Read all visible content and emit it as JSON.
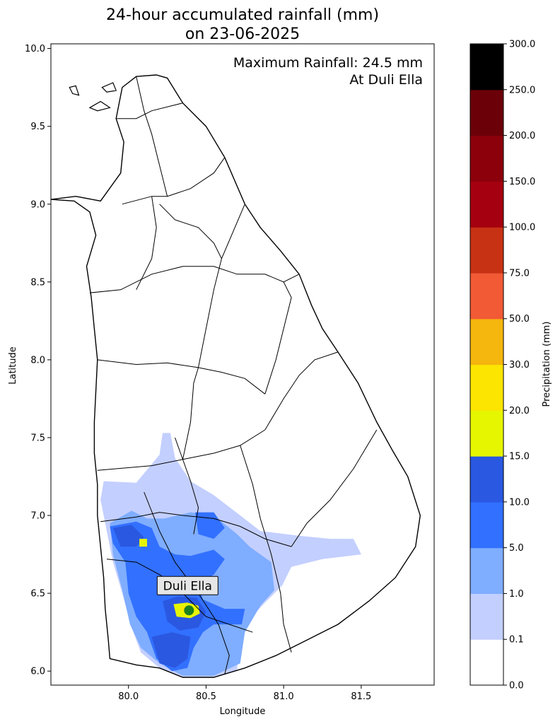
{
  "title": {
    "line1": "24-hour accumulated rainfall (mm)",
    "line2": "on 23-06-2025"
  },
  "annotation": {
    "line1": "Maximum Rainfall: 24.5 mm",
    "line2": "At Duli Ella"
  },
  "station": {
    "name": "Duli Ella",
    "lon": 80.39,
    "lat": 6.39,
    "marker_color": "#1e7f1e"
  },
  "map_axes": {
    "xlabel": "Longitude",
    "ylabel": "Latitude",
    "x_range": [
      79.5,
      81.97
    ],
    "y_range": [
      5.91,
      10.03
    ],
    "x_ticks": [
      "80.0",
      "80.5",
      "81.0",
      "81.5"
    ],
    "y_ticks": [
      "6.0",
      "6.5",
      "7.0",
      "7.5",
      "8.0",
      "8.5",
      "9.0",
      "9.5",
      "10.0"
    ]
  },
  "colorbar": {
    "label": "Precipitation (mm)",
    "tick_labels": [
      "0.0",
      "0.1",
      "1.0",
      "5.0",
      "10.0",
      "15.0",
      "20.0",
      "30.0",
      "50.0",
      "75.0",
      "100.0",
      "150.0",
      "200.0",
      "250.0",
      "300.0"
    ],
    "colors": [
      "#ffffff",
      "#c3cfff",
      "#7fadff",
      "#3270ff",
      "#2a58e0",
      "#e6f500",
      "#fce500",
      "#f5b60d",
      "#f15a35",
      "#c83214",
      "#a5000f",
      "#8c000b",
      "#6b0008",
      "#000000"
    ]
  },
  "rainfall_regions": [
    {
      "level": "0.1-1",
      "color": "#c3cfff",
      "points": [
        [
          79.84,
          7.22
        ],
        [
          80.05,
          7.21
        ],
        [
          80.2,
          7.39
        ],
        [
          80.22,
          7.53
        ],
        [
          80.27,
          7.53
        ],
        [
          80.3,
          7.37
        ],
        [
          80.4,
          7.22
        ],
        [
          80.55,
          7.13
        ],
        [
          80.72,
          7.0
        ],
        [
          80.85,
          6.9
        ],
        [
          81.1,
          6.87
        ],
        [
          81.3,
          6.85
        ],
        [
          81.45,
          6.85
        ],
        [
          81.5,
          6.75
        ],
        [
          81.25,
          6.72
        ],
        [
          81.05,
          6.67
        ],
        [
          80.99,
          6.55
        ],
        [
          80.88,
          6.44
        ],
        [
          80.78,
          6.33
        ],
        [
          80.71,
          6.19
        ],
        [
          80.7,
          6.0
        ],
        [
          80.55,
          5.96
        ],
        [
          80.35,
          5.96
        ],
        [
          80.2,
          6.02
        ],
        [
          80.08,
          6.12
        ],
        [
          80.02,
          6.28
        ],
        [
          79.96,
          6.5
        ],
        [
          79.9,
          6.7
        ],
        [
          79.85,
          6.95
        ],
        [
          79.82,
          7.1
        ]
      ]
    },
    {
      "level": "1-5",
      "color": "#7fadff",
      "points": [
        [
          79.88,
          6.95
        ],
        [
          80.02,
          7.03
        ],
        [
          80.12,
          6.98
        ],
        [
          80.23,
          6.98
        ],
        [
          80.4,
          7.02
        ],
        [
          80.55,
          7.0
        ],
        [
          80.7,
          6.88
        ],
        [
          80.78,
          6.8
        ],
        [
          80.92,
          6.7
        ],
        [
          80.94,
          6.52
        ],
        [
          80.85,
          6.42
        ],
        [
          80.75,
          6.25
        ],
        [
          80.72,
          6.05
        ],
        [
          80.55,
          5.97
        ],
        [
          80.35,
          5.97
        ],
        [
          80.2,
          6.05
        ],
        [
          80.08,
          6.15
        ],
        [
          80.01,
          6.3
        ],
        [
          79.96,
          6.52
        ],
        [
          79.9,
          6.75
        ]
      ]
    },
    {
      "level": "5-10",
      "color": "#3270ff",
      "points": [
        [
          79.88,
          6.93
        ],
        [
          80.05,
          6.96
        ],
        [
          80.15,
          6.92
        ],
        [
          80.2,
          6.8
        ],
        [
          80.3,
          6.75
        ],
        [
          80.4,
          6.74
        ],
        [
          80.55,
          6.78
        ],
        [
          80.62,
          6.72
        ],
        [
          80.55,
          6.62
        ],
        [
          80.45,
          6.56
        ],
        [
          80.48,
          6.46
        ],
        [
          80.62,
          6.4
        ],
        [
          80.75,
          6.4
        ],
        [
          80.73,
          6.3
        ],
        [
          80.55,
          6.3
        ],
        [
          80.48,
          6.25
        ],
        [
          80.42,
          6.15
        ],
        [
          80.38,
          6.02
        ],
        [
          80.28,
          6.0
        ],
        [
          80.18,
          6.08
        ],
        [
          80.12,
          6.25
        ],
        [
          80.05,
          6.35
        ],
        [
          80.0,
          6.5
        ],
        [
          79.98,
          6.7
        ],
        [
          79.9,
          6.82
        ]
      ]
    },
    {
      "level": "5-10b",
      "color": "#3270ff",
      "points": [
        [
          80.43,
          7.02
        ],
        [
          80.55,
          7.02
        ],
        [
          80.62,
          6.92
        ],
        [
          80.55,
          6.85
        ],
        [
          80.45,
          6.88
        ]
      ]
    },
    {
      "level": "10-15",
      "color": "#2a58e0",
      "points": [
        [
          80.22,
          6.45
        ],
        [
          80.32,
          6.48
        ],
        [
          80.44,
          6.47
        ],
        [
          80.5,
          6.38
        ],
        [
          80.45,
          6.28
        ],
        [
          80.33,
          6.26
        ],
        [
          80.25,
          6.32
        ]
      ]
    },
    {
      "level": "10-15b",
      "color": "#2a58e0",
      "points": [
        [
          80.15,
          6.22
        ],
        [
          80.28,
          6.25
        ],
        [
          80.4,
          6.22
        ],
        [
          80.38,
          6.08
        ],
        [
          80.3,
          6.02
        ],
        [
          80.2,
          6.05
        ]
      ]
    },
    {
      "level": "10-15c",
      "color": "#2a58e0",
      "points": [
        [
          79.9,
          6.92
        ],
        [
          80.02,
          6.94
        ],
        [
          80.1,
          6.86
        ],
        [
          80.05,
          6.8
        ],
        [
          79.95,
          6.8
        ]
      ]
    },
    {
      "level": "15-20",
      "color": "#e6f500",
      "points": [
        [
          80.29,
          6.43
        ],
        [
          80.38,
          6.44
        ],
        [
          80.45,
          6.42
        ],
        [
          80.46,
          6.37
        ],
        [
          80.4,
          6.34
        ],
        [
          80.31,
          6.35
        ]
      ]
    },
    {
      "level": "15-20b",
      "color": "#e6f500",
      "points": [
        [
          80.07,
          6.85
        ],
        [
          80.12,
          6.85
        ],
        [
          80.12,
          6.8
        ],
        [
          80.07,
          6.8
        ]
      ]
    },
    {
      "level": "20-30",
      "color": "#fce500",
      "points": [
        [
          80.33,
          6.41
        ],
        [
          80.38,
          6.42
        ],
        [
          80.41,
          6.39
        ],
        [
          80.36,
          6.37
        ]
      ]
    }
  ],
  "coastline": [
    [
      79.88,
      6.08
    ],
    [
      79.87,
      6.2
    ],
    [
      79.85,
      6.4
    ],
    [
      79.84,
      6.6
    ],
    [
      79.82,
      6.8
    ],
    [
      79.8,
      7.0
    ],
    [
      79.8,
      7.2
    ],
    [
      79.78,
      7.4
    ],
    [
      79.78,
      7.6
    ],
    [
      79.79,
      7.8
    ],
    [
      79.8,
      8.0
    ],
    [
      79.78,
      8.2
    ],
    [
      79.76,
      8.4
    ],
    [
      79.73,
      8.6
    ],
    [
      79.79,
      8.8
    ],
    [
      79.75,
      8.95
    ],
    [
      79.65,
      9.02
    ],
    [
      79.5,
      9.03
    ],
    [
      79.66,
      9.05
    ],
    [
      79.82,
      9.02
    ],
    [
      79.95,
      9.2
    ],
    [
      79.97,
      9.4
    ],
    [
      79.92,
      9.55
    ],
    [
      79.96,
      9.75
    ],
    [
      80.05,
      9.82
    ],
    [
      80.18,
      9.83
    ],
    [
      80.25,
      9.81
    ],
    [
      80.35,
      9.65
    ],
    [
      80.5,
      9.5
    ],
    [
      80.62,
      9.3
    ],
    [
      80.75,
      9.0
    ],
    [
      80.85,
      8.85
    ],
    [
      80.98,
      8.7
    ],
    [
      81.1,
      8.55
    ],
    [
      81.18,
      8.35
    ],
    [
      81.25,
      8.2
    ],
    [
      81.35,
      8.05
    ],
    [
      81.48,
      7.85
    ],
    [
      81.6,
      7.6
    ],
    [
      81.7,
      7.42
    ],
    [
      81.8,
      7.25
    ],
    [
      81.88,
      7.0
    ],
    [
      81.85,
      6.8
    ],
    [
      81.72,
      6.6
    ],
    [
      81.55,
      6.45
    ],
    [
      81.35,
      6.3
    ],
    [
      81.15,
      6.2
    ],
    [
      80.95,
      6.1
    ],
    [
      80.75,
      6.02
    ],
    [
      80.55,
      5.96
    ],
    [
      80.35,
      5.96
    ],
    [
      80.2,
      6.02
    ],
    [
      80.05,
      6.04
    ]
  ],
  "districts": [
    [
      [
        79.8,
        7.29
      ],
      [
        80.15,
        7.32
      ],
      [
        80.35,
        7.36
      ]
    ],
    [
      [
        80.35,
        7.36
      ],
      [
        80.55,
        7.4
      ],
      [
        80.72,
        7.45
      ],
      [
        80.88,
        7.55
      ]
    ],
    [
      [
        80.3,
        7.5
      ],
      [
        80.4,
        7.22
      ],
      [
        80.45,
        7.05
      ],
      [
        80.42,
        6.88
      ]
    ],
    [
      [
        79.82,
        6.96
      ],
      [
        80.05,
        6.99
      ],
      [
        80.2,
        7.02
      ],
      [
        80.35,
        7.0
      ],
      [
        80.55,
        6.98
      ]
    ],
    [
      [
        79.86,
        6.72
      ],
      [
        80.05,
        6.7
      ],
      [
        80.2,
        6.62
      ],
      [
        80.3,
        6.55
      ]
    ],
    [
      [
        80.3,
        6.55
      ],
      [
        80.4,
        6.45
      ],
      [
        80.5,
        6.35
      ],
      [
        80.65,
        6.3
      ],
      [
        80.8,
        6.25
      ]
    ],
    [
      [
        80.1,
        7.15
      ],
      [
        80.2,
        6.9
      ],
      [
        80.3,
        6.7
      ],
      [
        80.45,
        6.5
      ],
      [
        80.58,
        6.3
      ],
      [
        80.65,
        6.1
      ],
      [
        80.62,
        5.98
      ]
    ],
    [
      [
        80.55,
        6.98
      ],
      [
        80.72,
        6.93
      ],
      [
        80.88,
        6.85
      ],
      [
        81.05,
        6.8
      ]
    ],
    [
      [
        80.72,
        7.45
      ],
      [
        80.8,
        7.2
      ],
      [
        80.85,
        6.98
      ],
      [
        80.92,
        6.75
      ],
      [
        80.98,
        6.5
      ],
      [
        81.0,
        6.3
      ],
      [
        81.05,
        6.12
      ]
    ],
    [
      [
        81.05,
        6.8
      ],
      [
        81.15,
        6.95
      ],
      [
        81.3,
        7.1
      ],
      [
        81.45,
        7.3
      ],
      [
        81.6,
        7.55
      ]
    ],
    [
      [
        80.88,
        7.55
      ],
      [
        81.0,
        7.75
      ],
      [
        81.1,
        7.9
      ],
      [
        81.2,
        8.0
      ],
      [
        81.35,
        8.05
      ]
    ],
    [
      [
        79.8,
        8.0
      ],
      [
        80.05,
        7.97
      ],
      [
        80.25,
        7.98
      ],
      [
        80.45,
        7.95
      ],
      [
        80.6,
        7.92
      ],
      [
        80.75,
        7.88
      ],
      [
        80.88,
        7.78
      ]
    ],
    [
      [
        80.35,
        7.36
      ],
      [
        80.4,
        7.6
      ],
      [
        80.42,
        7.85
      ],
      [
        80.45,
        7.95
      ],
      [
        80.5,
        8.2
      ],
      [
        80.55,
        8.45
      ],
      [
        80.6,
        8.65
      ],
      [
        80.75,
        9.0
      ]
    ],
    [
      [
        79.75,
        8.43
      ],
      [
        79.95,
        8.45
      ],
      [
        80.15,
        8.55
      ],
      [
        80.35,
        8.6
      ],
      [
        80.55,
        8.6
      ],
      [
        80.7,
        8.55
      ],
      [
        80.88,
        8.55
      ],
      [
        81.0,
        8.5
      ],
      [
        81.1,
        8.55
      ]
    ],
    [
      [
        80.88,
        7.78
      ],
      [
        80.95,
        8.0
      ],
      [
        81.0,
        8.2
      ],
      [
        81.05,
        8.4
      ],
      [
        81.0,
        8.5
      ]
    ],
    [
      [
        79.96,
        9.0
      ],
      [
        80.15,
        9.05
      ],
      [
        80.25,
        9.05
      ],
      [
        80.4,
        9.1
      ],
      [
        80.55,
        9.2
      ],
      [
        80.62,
        9.3
      ]
    ],
    [
      [
        80.05,
        9.82
      ],
      [
        80.1,
        9.6
      ],
      [
        80.15,
        9.45
      ],
      [
        80.2,
        9.25
      ],
      [
        80.25,
        9.05
      ]
    ],
    [
      [
        79.92,
        9.55
      ],
      [
        80.05,
        9.55
      ],
      [
        80.15,
        9.6
      ],
      [
        80.35,
        9.65
      ]
    ],
    [
      [
        80.05,
        8.45
      ],
      [
        80.15,
        8.65
      ],
      [
        80.18,
        8.85
      ],
      [
        80.15,
        9.05
      ]
    ],
    [
      [
        80.2,
        9.0
      ],
      [
        80.3,
        8.9
      ],
      [
        80.45,
        8.85
      ],
      [
        80.55,
        8.75
      ],
      [
        80.6,
        8.65
      ]
    ]
  ],
  "islands": [
    [
      [
        79.62,
        9.75
      ],
      [
        79.66,
        9.76
      ],
      [
        79.68,
        9.7
      ],
      [
        79.64,
        9.71
      ]
    ],
    [
      [
        79.75,
        9.62
      ],
      [
        79.82,
        9.66
      ],
      [
        79.88,
        9.62
      ],
      [
        79.8,
        9.6
      ]
    ],
    [
      [
        79.83,
        9.75
      ],
      [
        79.9,
        9.78
      ],
      [
        79.92,
        9.73
      ],
      [
        79.86,
        9.72
      ]
    ]
  ]
}
